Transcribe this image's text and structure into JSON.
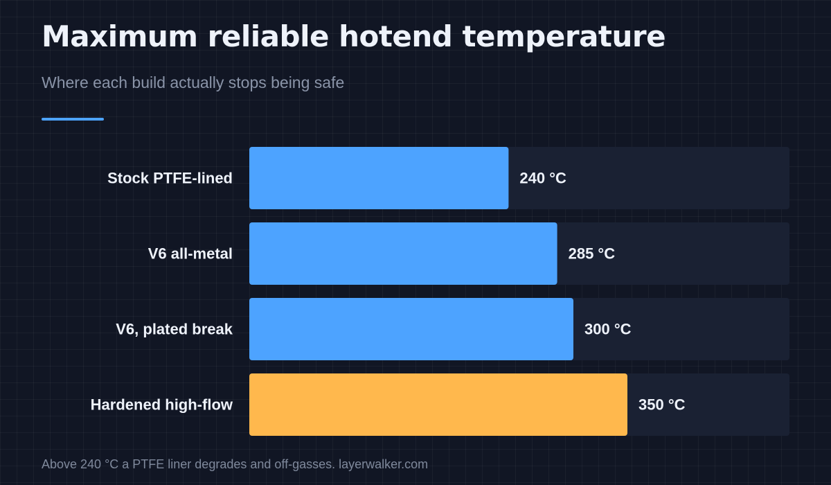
{
  "header": {
    "title": "Maximum reliable hotend temperature",
    "subtitle": "Where each build actually stops being safe"
  },
  "footer": {
    "note": "Above 240 °C a PTFE liner degrades and off-gasses. layerwalker.com"
  },
  "colors": {
    "accent": "#4da3ff",
    "highlight": "#ffb84d",
    "track": "#1a2133",
    "label": "#eef2fa"
  },
  "chart_data": {
    "type": "bar",
    "orientation": "horizontal",
    "categories": [
      "Stock PTFE-lined",
      "V6 all-metal",
      "V6, plated break",
      "Hardened high-flow"
    ],
    "values": [
      240,
      285,
      300,
      350
    ],
    "value_labels": [
      "240 °C",
      "285 °C",
      "300 °C",
      "350 °C"
    ],
    "highlighted": [
      false,
      false,
      false,
      true
    ],
    "xlim": [
      0,
      500
    ],
    "unit": "°C"
  }
}
